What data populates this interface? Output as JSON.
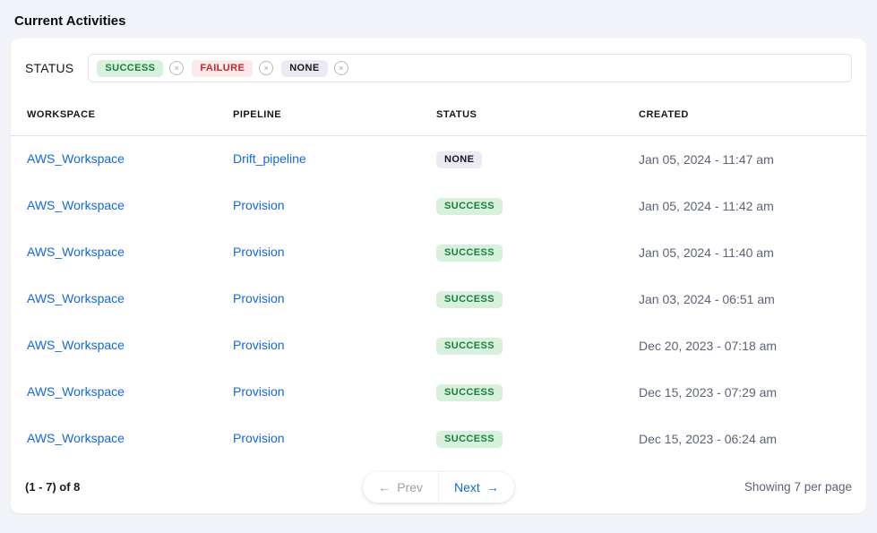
{
  "page": {
    "title": "Current Activities"
  },
  "filter": {
    "label": "STATUS",
    "chips": [
      {
        "label": "SUCCESS",
        "tone": "success"
      },
      {
        "label": "FAILURE",
        "tone": "failure"
      },
      {
        "label": "NONE",
        "tone": "none"
      }
    ],
    "remove_icon_glyph": "×"
  },
  "table": {
    "columns": [
      "WORKSPACE",
      "PIPELINE",
      "STATUS",
      "CREATED"
    ],
    "rows": [
      {
        "workspace": "AWS_Workspace",
        "pipeline": "Drift_pipeline",
        "status": "NONE",
        "status_tone": "none",
        "created": "Jan 05, 2024 - 11:47 am"
      },
      {
        "workspace": "AWS_Workspace",
        "pipeline": "Provision",
        "status": "SUCCESS",
        "status_tone": "success",
        "created": "Jan 05, 2024 - 11:42 am"
      },
      {
        "workspace": "AWS_Workspace",
        "pipeline": "Provision",
        "status": "SUCCESS",
        "status_tone": "success",
        "created": "Jan 05, 2024 - 11:40 am"
      },
      {
        "workspace": "AWS_Workspace",
        "pipeline": "Provision",
        "status": "SUCCESS",
        "status_tone": "success",
        "created": "Jan 03, 2024 - 06:51 am"
      },
      {
        "workspace": "AWS_Workspace",
        "pipeline": "Provision",
        "status": "SUCCESS",
        "status_tone": "success",
        "created": "Dec 20, 2023 - 07:18 am"
      },
      {
        "workspace": "AWS_Workspace",
        "pipeline": "Provision",
        "status": "SUCCESS",
        "status_tone": "success",
        "created": "Dec 15, 2023 - 07:29 am"
      },
      {
        "workspace": "AWS_Workspace",
        "pipeline": "Provision",
        "status": "SUCCESS",
        "status_tone": "success",
        "created": "Dec 15, 2023 - 06:24 am"
      }
    ]
  },
  "pagination": {
    "range_text": "(1 - 7) of 8",
    "prev_arrow": "←",
    "prev_label": "Prev",
    "next_label": "Next",
    "next_arrow": "→",
    "prev_enabled": false,
    "per_page_text": "Showing 7 per page"
  },
  "colors": {
    "page_bg": "#f2f4f9",
    "card_bg": "#ffffff",
    "accent_blue": "#1568dc",
    "success_bg": "#d8f1dd",
    "success_text": "#17803c",
    "failure_bg": "#fce9e9",
    "failure_text": "#c2272d",
    "none_bg": "#ecebf4",
    "none_text": "#17171e",
    "muted_text": "#5d6477",
    "header_text": "#16161d",
    "border": "#dfe2e9",
    "disabled_text": "#9aa2ae"
  }
}
